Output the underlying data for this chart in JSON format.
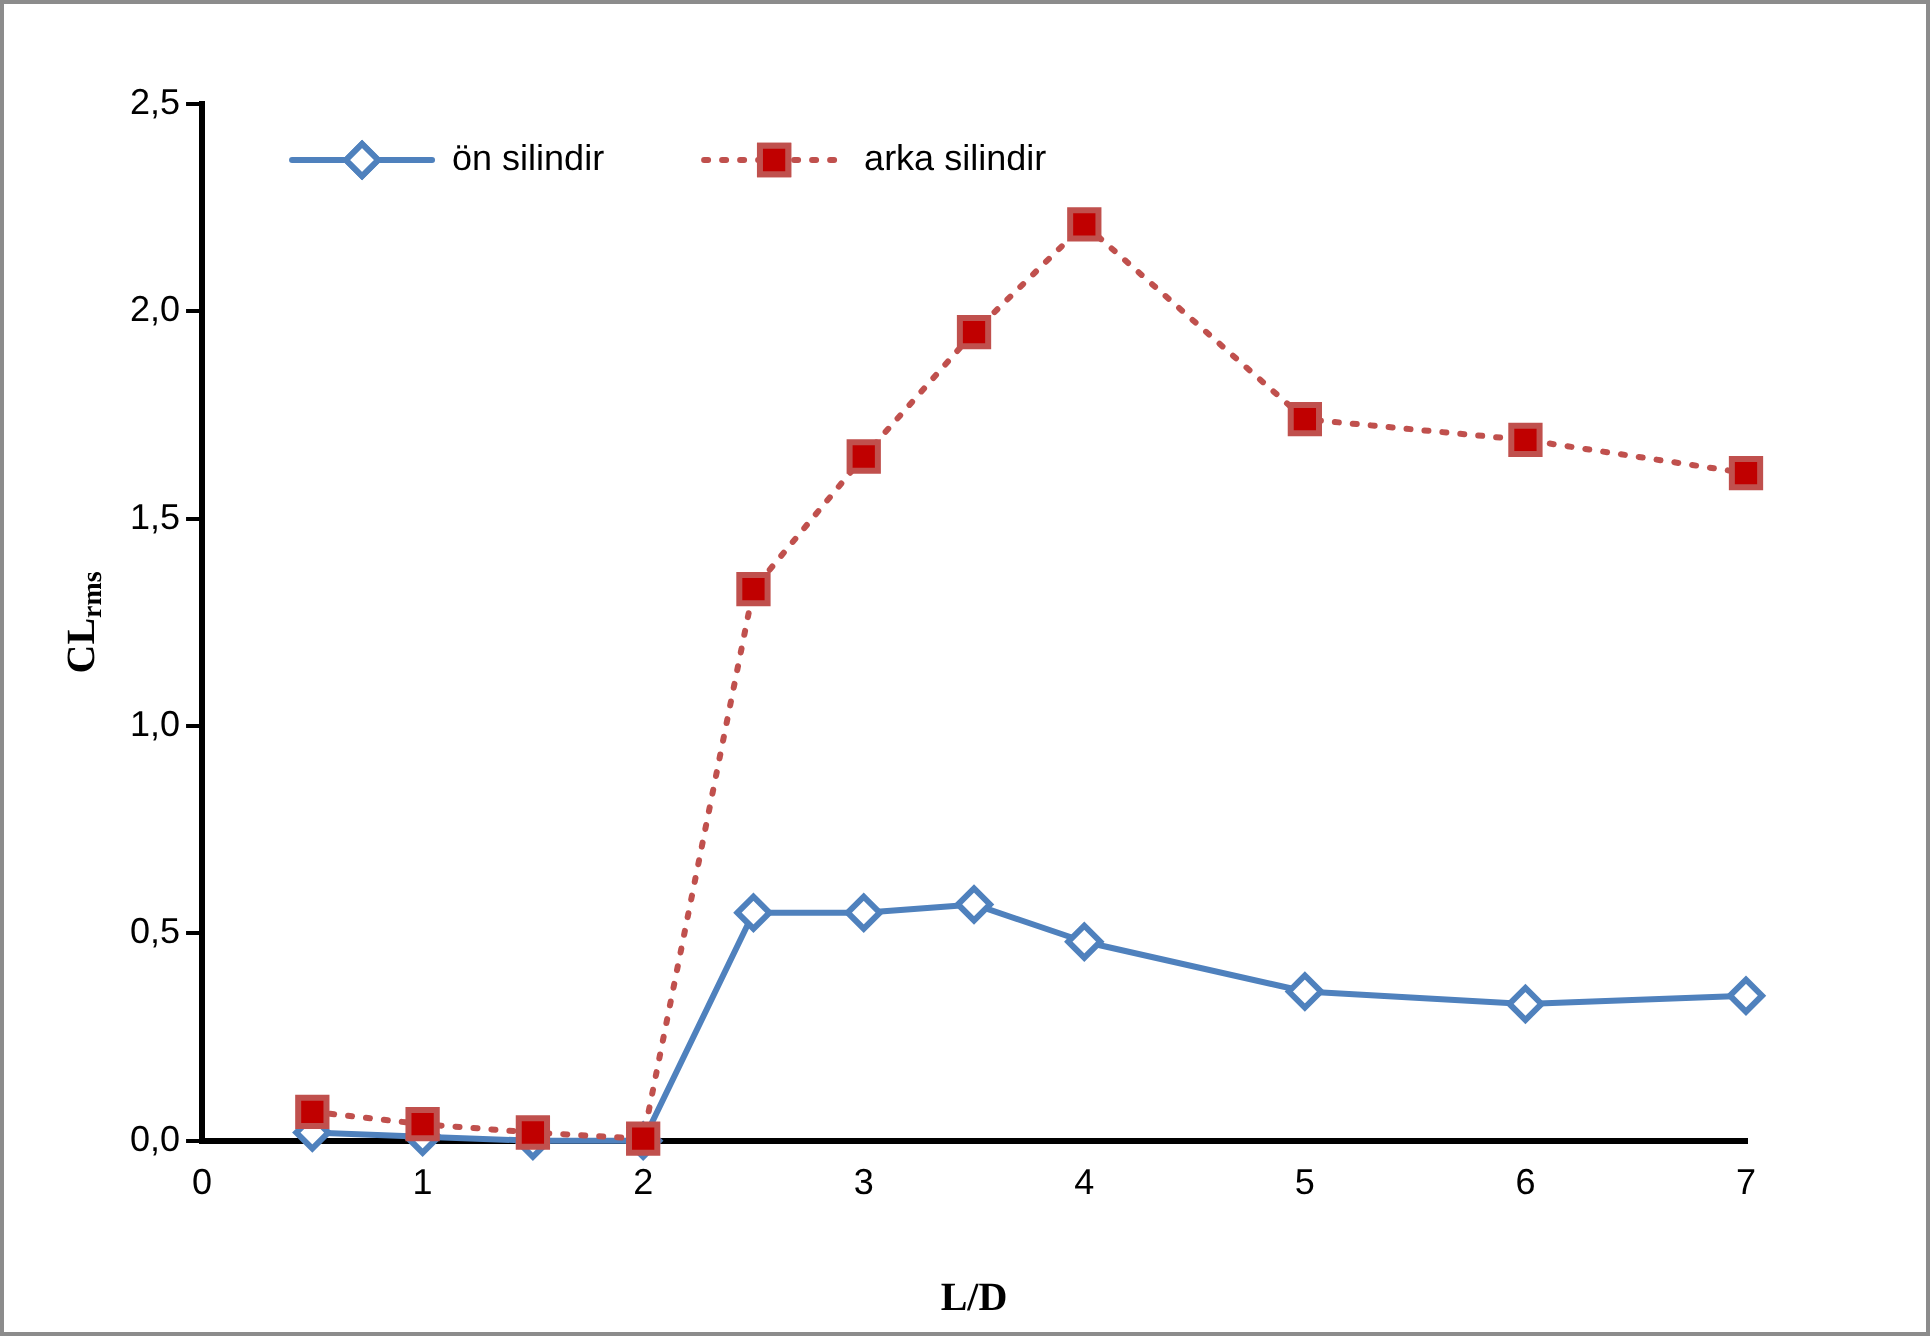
{
  "chart_data": {
    "type": "line",
    "xlabel": "L/D",
    "ylabel": "CL$_{rms}$",
    "x": [
      0.5,
      1,
      1.5,
      2,
      2.5,
      3,
      3.5,
      4,
      5,
      6,
      7
    ],
    "series": [
      {
        "name": "ön silindir",
        "color": "#4f81bd",
        "marker": "diamond",
        "line_style": "solid",
        "values": [
          0.02,
          0.01,
          0.0,
          0.0,
          0.55,
          0.55,
          0.57,
          0.48,
          0.36,
          0.33,
          0.35
        ]
      },
      {
        "name": "arka silindir",
        "color": "#c0504d",
        "marker": "square",
        "line_style": "dotted",
        "values": [
          0.07,
          0.04,
          0.02,
          0.005,
          1.33,
          1.65,
          1.95,
          2.21,
          1.74,
          1.69,
          1.61
        ]
      }
    ],
    "xlim": [
      0,
      7
    ],
    "xticks": [
      0,
      1,
      2,
      3,
      4,
      5,
      6,
      7
    ],
    "ylim": [
      0,
      2.5
    ],
    "yticks": [
      {
        "value": 0,
        "label": "0,0"
      },
      {
        "value": 0.5,
        "label": "0,5"
      },
      {
        "value": 1,
        "label": "1,0"
      },
      {
        "value": 1.5,
        "label": "1,5"
      },
      {
        "value": 2,
        "label": "2,0"
      },
      {
        "value": 2.5,
        "label": "2,5"
      }
    ],
    "grid": false,
    "legend": "top left"
  }
}
